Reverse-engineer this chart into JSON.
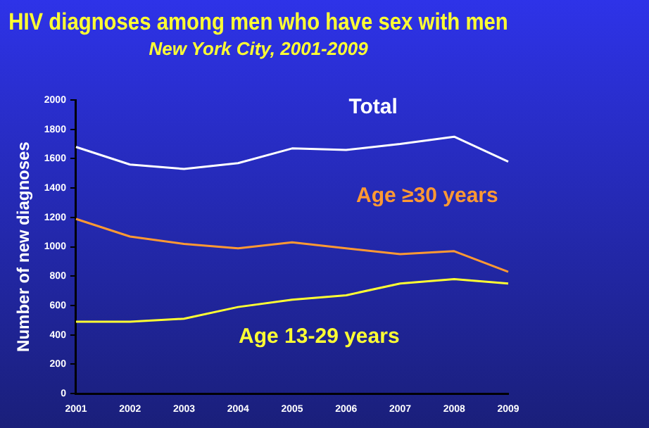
{
  "chart_data": {
    "type": "line",
    "title": "HIV diagnoses among men who have sex with men",
    "subtitle": "New York City, 2001-2009",
    "ylabel": "Number of new diagnoses",
    "categories": [
      "2001",
      "2002",
      "2003",
      "2004",
      "2005",
      "2006",
      "2007",
      "2008",
      "2009"
    ],
    "series": [
      {
        "name": "Total",
        "color": "#ffffff",
        "values": [
          1680,
          1560,
          1530,
          1570,
          1670,
          1660,
          1700,
          1750,
          1580
        ]
      },
      {
        "name": "Age ≥30 years",
        "color": "#ff9933",
        "values": [
          1190,
          1070,
          1020,
          990,
          1030,
          990,
          950,
          970,
          830
        ]
      },
      {
        "name": "Age 13-29 years",
        "color": "#ffff33",
        "values": [
          490,
          490,
          510,
          590,
          640,
          670,
          750,
          780,
          750
        ]
      }
    ],
    "ylim": [
      0,
      2000
    ],
    "yticks": [
      0,
      200,
      400,
      600,
      800,
      1000,
      1200,
      1400,
      1600,
      1800,
      2000
    ],
    "grid": false,
    "legend": false,
    "marker": "none",
    "line_style": "solid"
  }
}
